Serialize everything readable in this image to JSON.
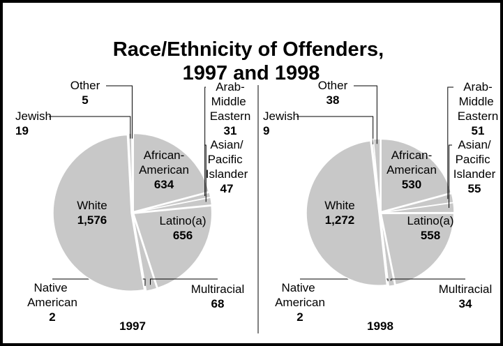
{
  "title": "Race/Ethnicity of Offenders, 1997 and 1998",
  "chart_data": [
    {
      "type": "pie",
      "title": "1997",
      "color": "#c8c8c8",
      "categories": [
        "African-American",
        "Arab-Middle Eastern",
        "Asian/Pacific Islander",
        "Latino(a)",
        "Multiracial",
        "Native American",
        "White",
        "Jewish",
        "Other"
      ],
      "values": [
        634,
        31,
        47,
        656,
        68,
        2,
        1576,
        19,
        5
      ],
      "value_labels": [
        "634",
        "31",
        "47",
        "656",
        "68",
        "2",
        "1,576",
        "19",
        "5"
      ]
    },
    {
      "type": "pie",
      "title": "1998",
      "color": "#c8c8c8",
      "categories": [
        "African-American",
        "Arab-Middle Eastern",
        "Asian/Pacific Islander",
        "Latino(a)",
        "Multiracial",
        "Native American",
        "White",
        "Jewish",
        "Other"
      ],
      "values": [
        530,
        51,
        55,
        558,
        34,
        2,
        1272,
        9,
        38
      ],
      "value_labels": [
        "530",
        "51",
        "55",
        "558",
        "34",
        "2",
        "1,272",
        "9",
        "38"
      ]
    }
  ]
}
